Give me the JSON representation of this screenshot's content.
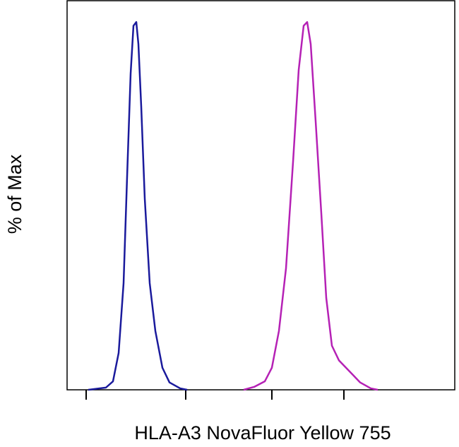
{
  "chart_data": {
    "type": "line",
    "y_label": "% of Max",
    "x_label": "HLA-A3 NovaFluor Yellow 755",
    "xlim": [
      0,
      550
    ],
    "ylim": [
      0,
      106
    ],
    "xticks": [
      27,
      168,
      290,
      392
    ],
    "series": [
      {
        "color": "#1a1a9c",
        "x": [
          30,
          55,
          65,
          73,
          80,
          85,
          90,
          94,
          98,
          101,
          105,
          110,
          117,
          125,
          135,
          145,
          160,
          170
        ],
        "values": [
          0,
          0.6,
          2.3,
          10,
          29,
          58,
          86,
          99,
          100,
          94,
          77,
          52,
          29,
          16,
          6,
          2,
          0.4,
          0
        ]
      },
      {
        "color": "#b521b5",
        "x": [
          250,
          265,
          280,
          290,
          300,
          310,
          320,
          328,
          335,
          340,
          345,
          352,
          360,
          367,
          375,
          385,
          395,
          405,
          415,
          430,
          440
        ],
        "values": [
          0,
          0.8,
          2.3,
          6,
          16,
          33,
          62,
          87,
          99,
          100,
          94,
          73,
          48,
          25,
          12,
          8,
          6,
          4,
          2,
          0.4,
          0
        ]
      }
    ]
  }
}
